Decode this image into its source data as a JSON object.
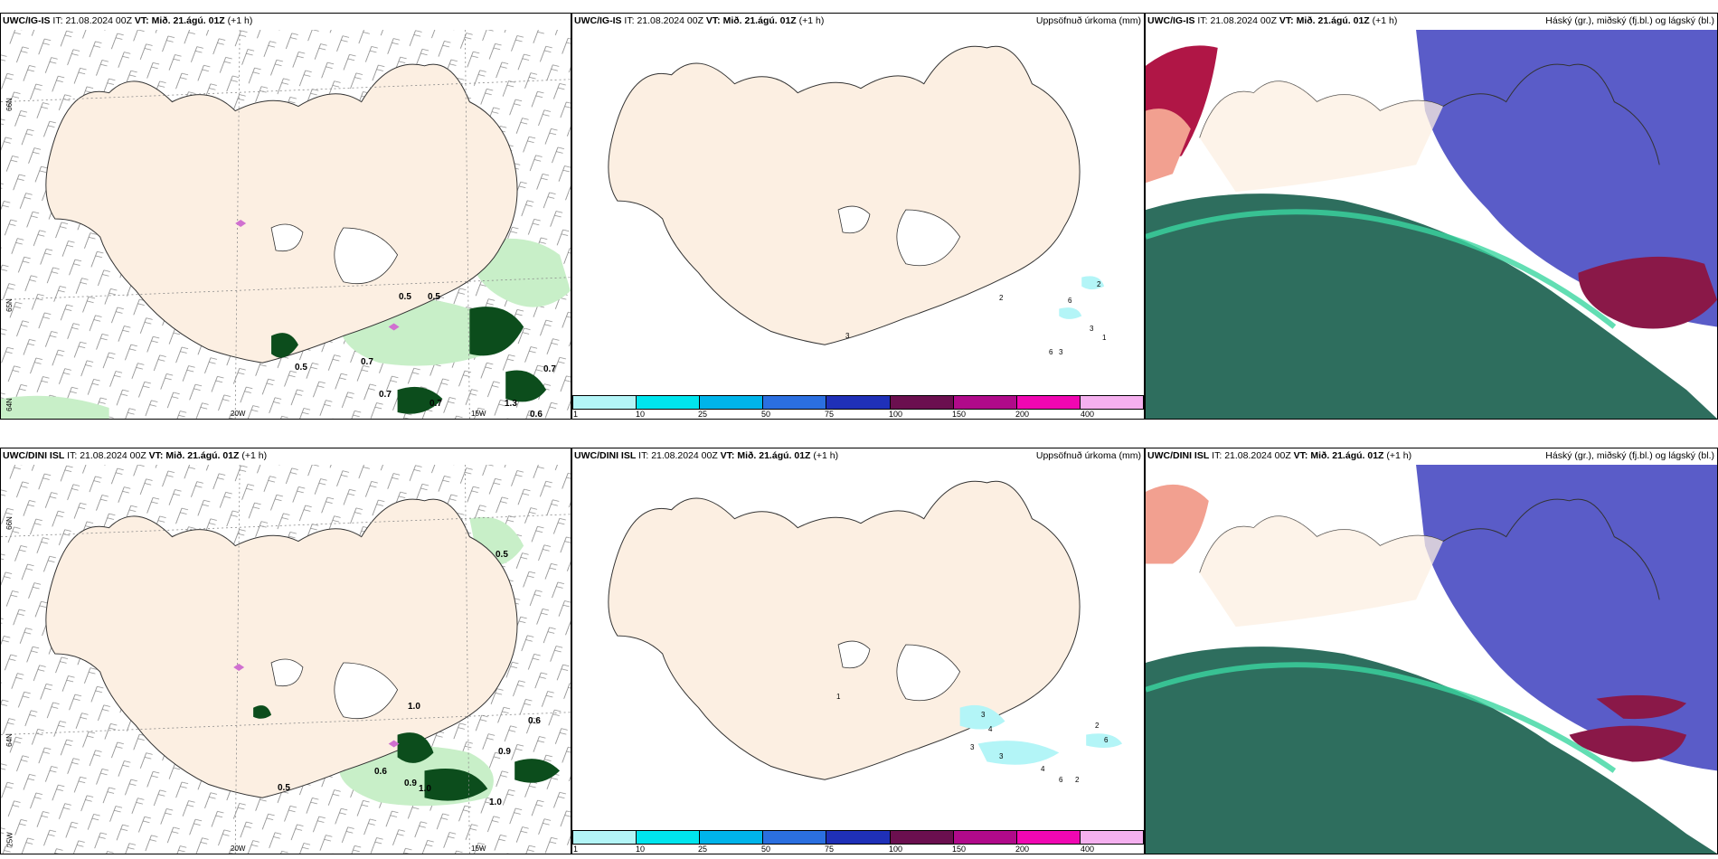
{
  "rows": [
    {
      "model": "UWC/IG-IS",
      "header": {
        "it_label": "IT:",
        "it_value": "21.08.2024 00Z",
        "vt_label": "VT:",
        "vt_value": "Mið. 21.ágú. 01Z",
        "lead": "(+1 h)"
      },
      "wind_labels": [
        "0.5",
        "0.5",
        "0.7",
        "0.7",
        "0.7",
        "0.7",
        "0.6",
        "1.3",
        "0.5"
      ],
      "precip_values": [
        "2",
        "2",
        "6",
        "3",
        "3",
        "1",
        "6",
        "3"
      ]
    },
    {
      "model": "UWC/DINI ISL",
      "header": {
        "it_label": "IT:",
        "it_value": "21.08.2024 00Z",
        "vt_label": "VT:",
        "vt_value": "Mið. 21.ágú. 01Z",
        "lead": "(+1 h)"
      },
      "wind_labels": [
        "0.5",
        "0.6",
        "0.9",
        "0.6",
        "0.9",
        "1.0",
        "1.0",
        "0.5",
        "1.0"
      ],
      "precip_values": [
        "1",
        "3",
        "4",
        "3",
        "3",
        "4",
        "6",
        "2",
        "2",
        "6"
      ]
    }
  ],
  "precip_title": "Uppsöfnuð úrkoma (mm)",
  "cloud_title": "Háský (gr.), miðský (fj.bl.) og lágský (bl.)",
  "grid_labels": {
    "lat66": "66N",
    "lat64": "64N",
    "lat65": "65N",
    "lon20": "20W",
    "lon15": "15W",
    "lon25": "25W"
  },
  "colorbar": {
    "colors": [
      "#b3f5f7",
      "#00e5ee",
      "#00b4ea",
      "#2b6fe0",
      "#1f30b8",
      "#6b0f4f",
      "#b00a8a",
      "#f007b2",
      "#f5b0ef"
    ],
    "ticks": [
      "1",
      "10",
      "25",
      "50",
      "75",
      "100",
      "150",
      "200",
      "400"
    ]
  },
  "colors": {
    "land": "#fcefe2",
    "rain_light": "#c8efc8",
    "rain_dark": "#0c4d1c",
    "cloud_high": "#5a5cc8",
    "cloud_low": "#2e6e5e"
  }
}
